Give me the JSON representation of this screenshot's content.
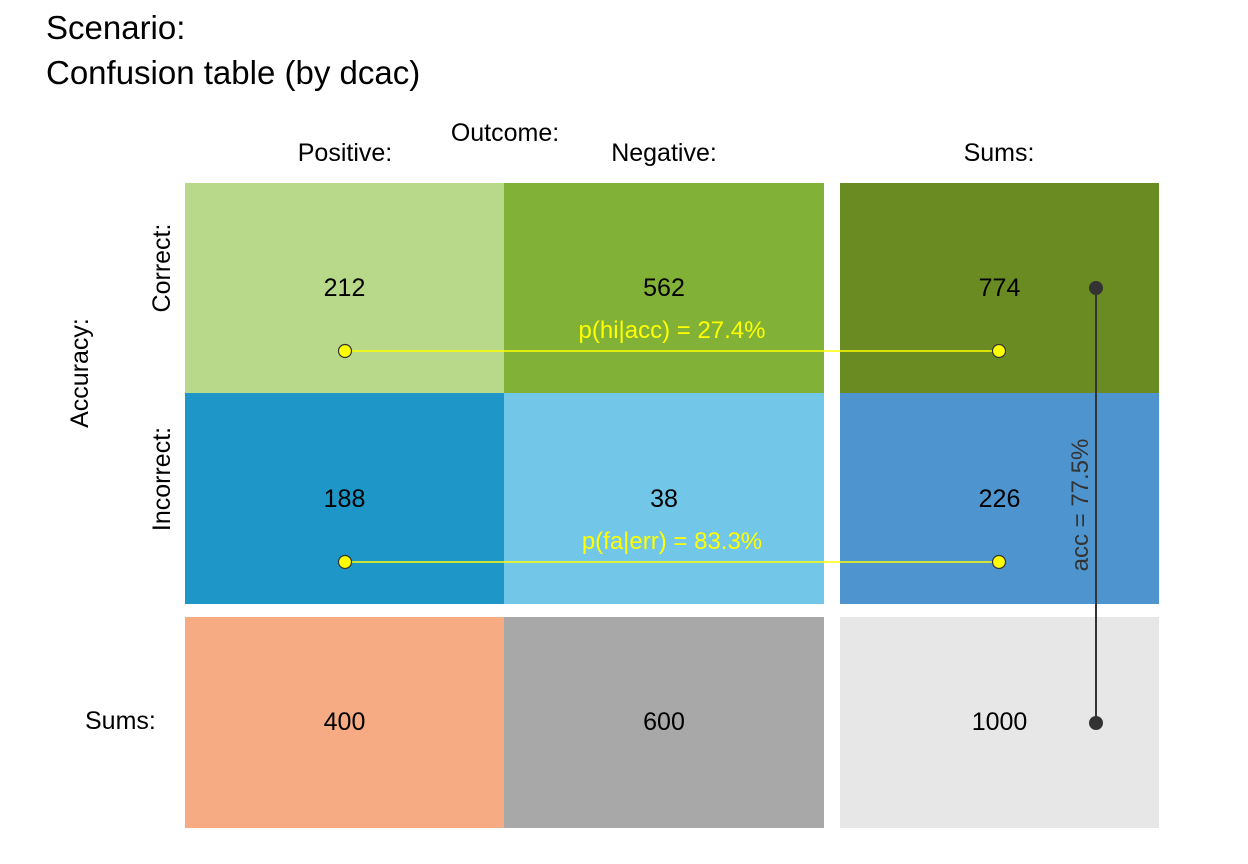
{
  "title": {
    "line1": "Scenario:",
    "line2": "Confusion table (by dcac)"
  },
  "headers": {
    "outcome": "Outcome:",
    "positive": "Positive:",
    "negative": "Negative:",
    "sums_col": "Sums:",
    "accuracy": "Accuracy:",
    "correct": "Correct:",
    "incorrect": "Incorrect:",
    "sums_row": "Sums:"
  },
  "cells": {
    "correct_positive": {
      "value": "212",
      "color": "#B8D98A"
    },
    "correct_negative": {
      "value": "562",
      "color": "#81B237"
    },
    "correct_sum": {
      "value": "774",
      "color": "#6A8B22"
    },
    "incorrect_positive": {
      "value": "188",
      "color": "#1E96C8"
    },
    "incorrect_negative": {
      "value": "38",
      "color": "#72C7E8"
    },
    "incorrect_sum": {
      "value": "226",
      "color": "#4E94CE"
    },
    "sum_positive": {
      "value": "400",
      "color": "#F6AB82"
    },
    "sum_negative": {
      "value": "600",
      "color": "#A8A8A8"
    },
    "sum_total": {
      "value": "1000",
      "color": "#E7E7E7"
    }
  },
  "annotations": {
    "hi_acc": "p(hi|acc) = 27.4%",
    "fa_err": "p(fa|err) = 83.3%",
    "acc": "acc = 77.5%"
  },
  "colors": {
    "annotation": "#FFFF00",
    "acc_line": "#333333"
  }
}
